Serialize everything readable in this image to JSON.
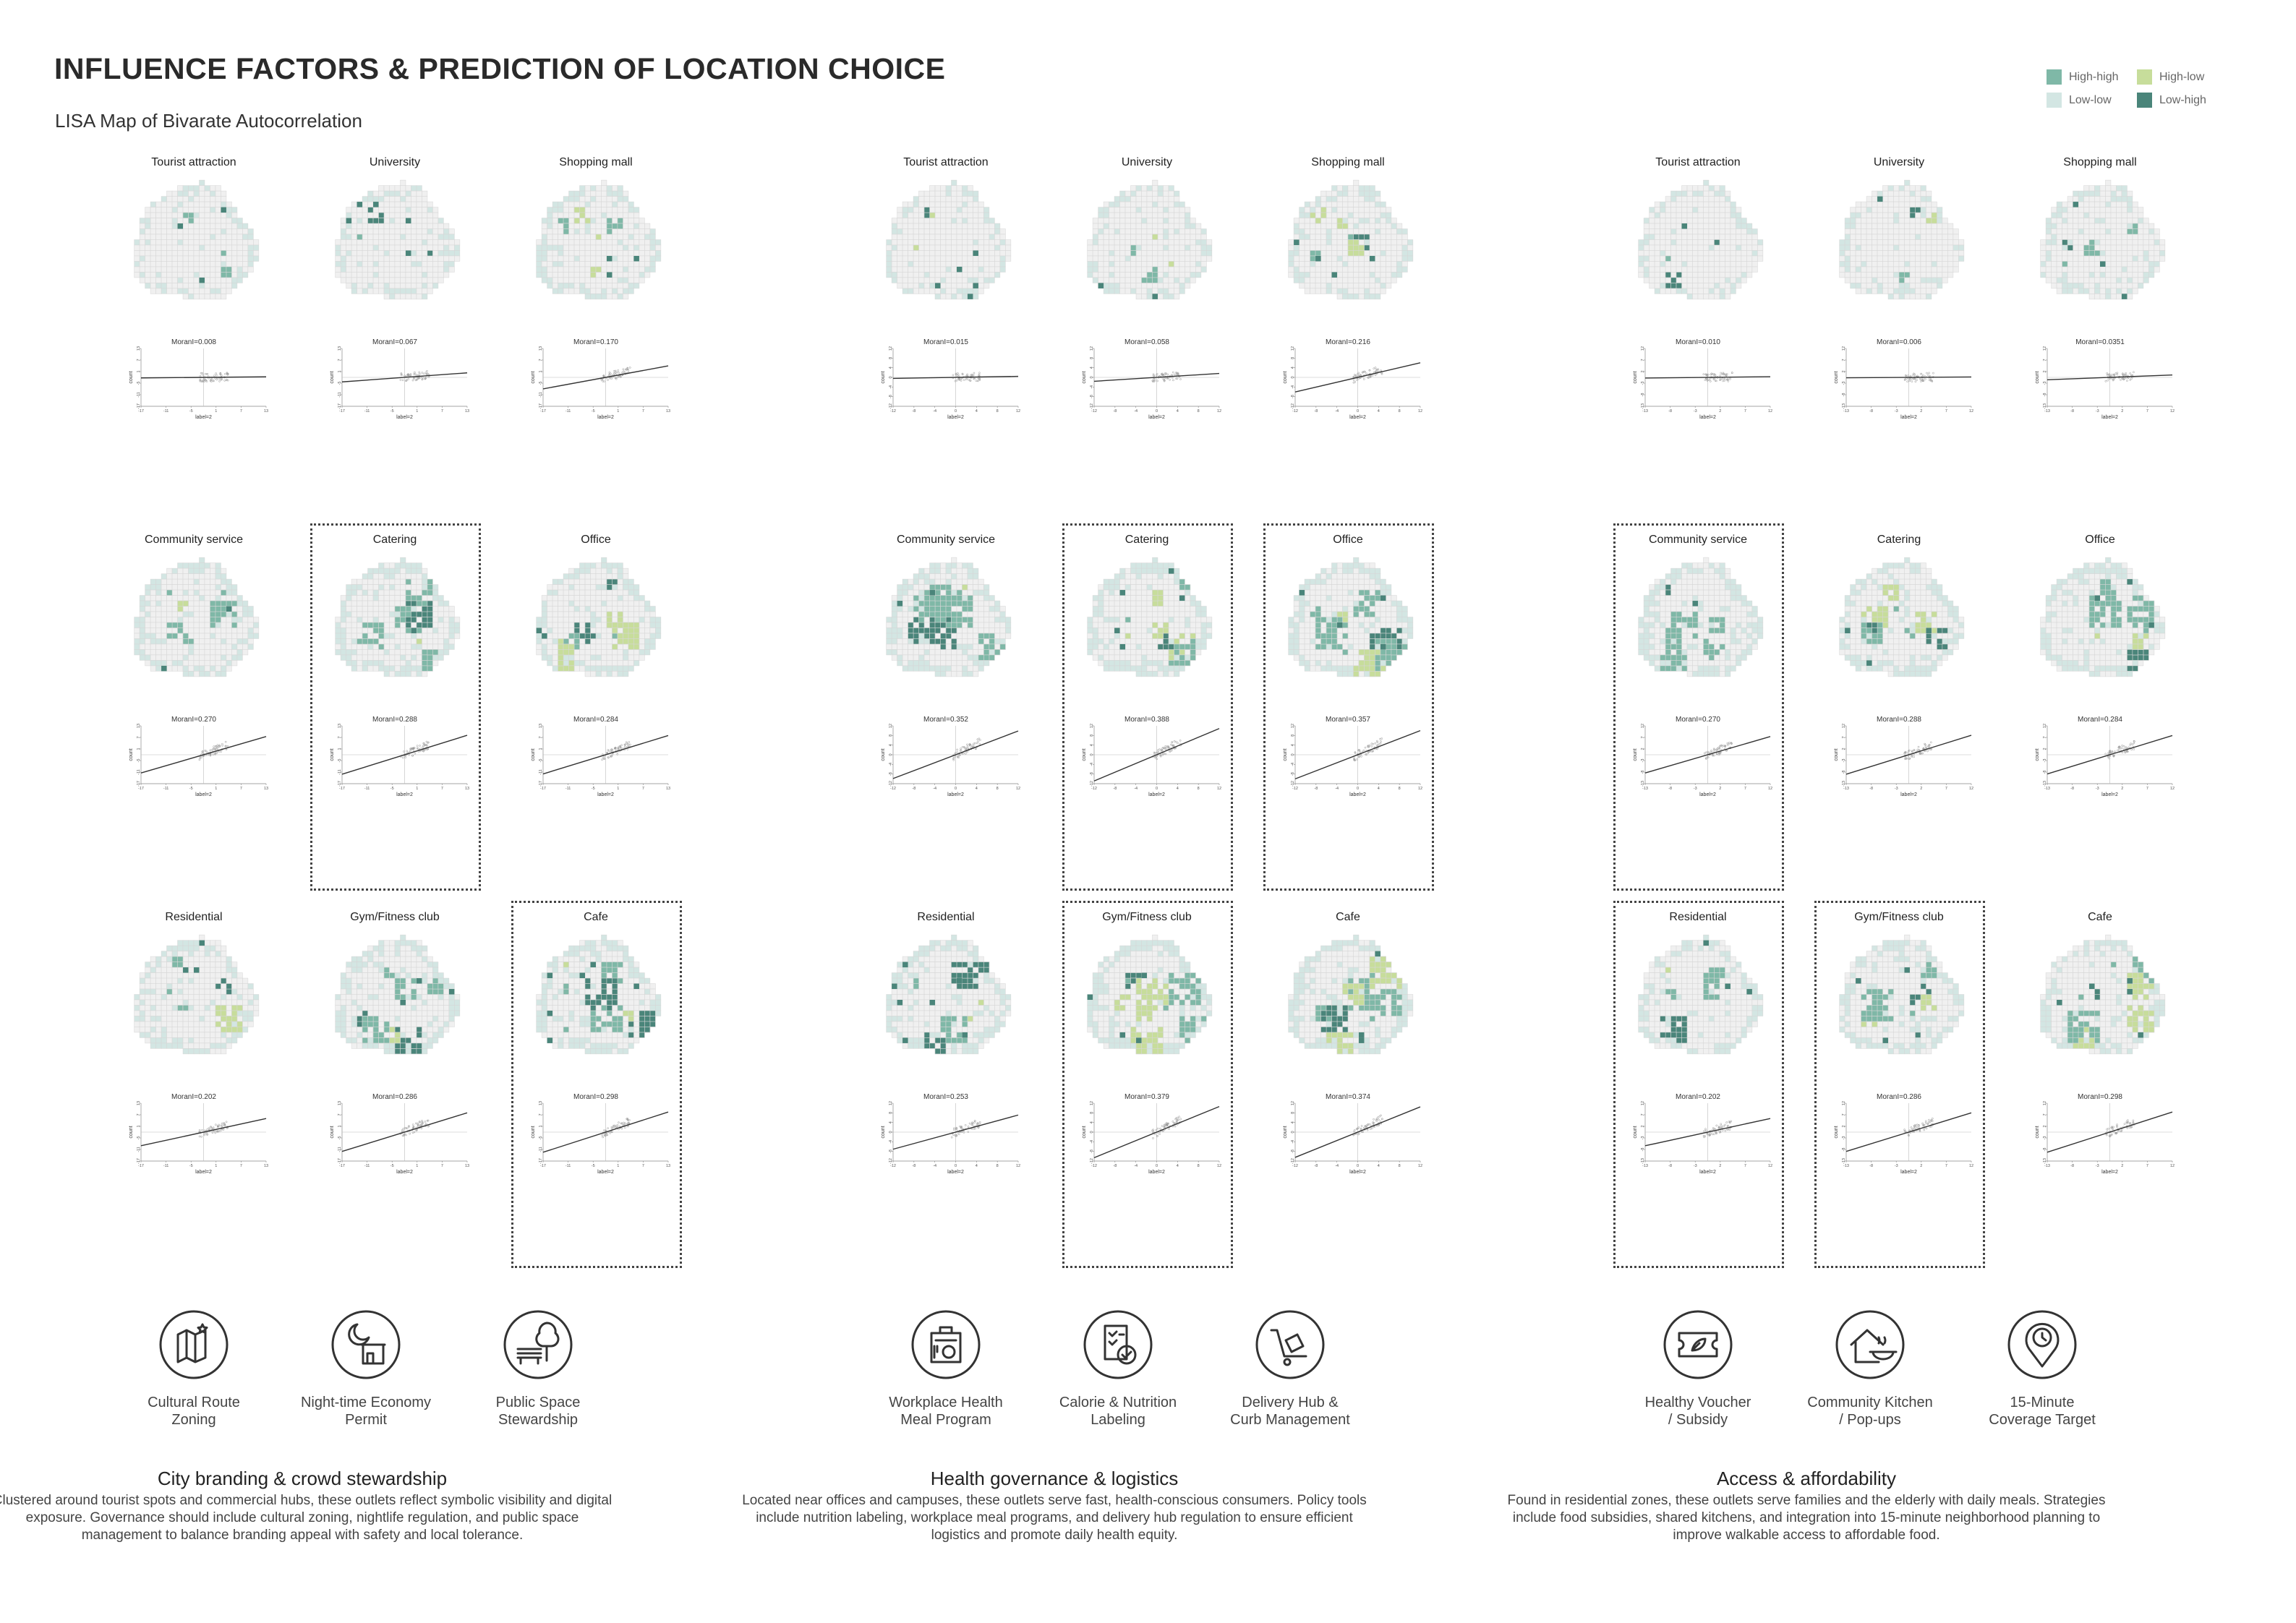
{
  "header": {
    "title": "INFLUENCE FACTORS & PREDICTION OF LOCATION CHOICE",
    "subtitle": "LISA Map of Bivarate Autocorrelation"
  },
  "legend": [
    {
      "label": "High-high",
      "color": "#7fb8a7"
    },
    {
      "label": "High-low",
      "color": "#c7dd9b"
    },
    {
      "label": "Low-low",
      "color": "#d3e6e3"
    },
    {
      "label": "Low-high",
      "color": "#4a857a"
    }
  ],
  "colors": {
    "high_high": "#7fb8a7",
    "high_low": "#c7dd9b",
    "low_low": "#d3e6e3",
    "low_high": "#4a857a",
    "grid": "#f0f0f0",
    "grid_line": "#d6d6d6"
  },
  "scatter_axis": {
    "xlabel": "label=2",
    "ylabel": "count"
  },
  "groups": [
    {
      "tick_x": [
        "-17",
        "-11",
        "-5",
        "1",
        "7",
        "13"
      ],
      "tick_y": [
        "13",
        "7",
        "1",
        "-5",
        "-11",
        "-17"
      ],
      "cells": [
        {
          "label": "Tourist attraction",
          "moran": "MoranI=0.008",
          "slope": 0.008,
          "boxed": false
        },
        {
          "label": "University",
          "moran": "MoranI=0.067",
          "slope": 0.067,
          "boxed": false
        },
        {
          "label": "Shopping mall",
          "moran": "MoranI=0.170",
          "slope": 0.17,
          "boxed": false
        },
        {
          "label": "Community service",
          "moran": "MoranI=0.270",
          "slope": 0.27,
          "boxed": false
        },
        {
          "label": "Catering",
          "moran": "MoranI=0.288",
          "slope": 0.288,
          "boxed": true
        },
        {
          "label": "Office",
          "moran": "MoranI=0.284",
          "slope": 0.284,
          "boxed": false
        },
        {
          "label": "Residential",
          "moran": "MoranI=0.202",
          "slope": 0.202,
          "boxed": false
        },
        {
          "label": "Gym/Fitness club",
          "moran": "MoranI=0.286",
          "slope": 0.286,
          "boxed": false
        },
        {
          "label": "Cafe",
          "moran": "MoranI=0.298",
          "slope": 0.298,
          "boxed": true
        }
      ],
      "policies": [
        {
          "icon": "map-star-icon",
          "label": "Cultural Route\nZoning"
        },
        {
          "icon": "moon-shop-icon",
          "label": "Night-time Economy\nPermit"
        },
        {
          "icon": "bench-tree-icon",
          "label": "Public Space\nStewardship"
        }
      ],
      "theme_title": "City branding & crowd stewardship",
      "theme_text": "Clustered around tourist spots and commercial hubs, these outlets reflect symbolic visibility and digital exposure. Governance should include cultural zoning, nightlife regulation, and public space management to balance branding appeal with safety and local tolerance."
    },
    {
      "tick_x": [
        "-12",
        "-8",
        "-4",
        "0",
        "4",
        "8",
        "12"
      ],
      "tick_y": [
        "12",
        "8",
        "4",
        "0",
        "-4",
        "-8",
        "-12"
      ],
      "cells": [
        {
          "label": "Tourist attraction",
          "moran": "MoranI=0.015",
          "slope": 0.015,
          "boxed": false
        },
        {
          "label": "University",
          "moran": "MoranI=0.058",
          "slope": 0.058,
          "boxed": false
        },
        {
          "label": "Shopping mall",
          "moran": "MoranI=0.216",
          "slope": 0.216,
          "boxed": false
        },
        {
          "label": "Community service",
          "moran": "MoranI=0.352",
          "slope": 0.352,
          "boxed": false
        },
        {
          "label": "Catering",
          "moran": "MoranI=0.388",
          "slope": 0.388,
          "boxed": true
        },
        {
          "label": "Office",
          "moran": "MoranI=0.357",
          "slope": 0.357,
          "boxed": true
        },
        {
          "label": "Residential",
          "moran": "MoranI=0.253",
          "slope": 0.253,
          "boxed": false
        },
        {
          "label": "Gym/Fitness club",
          "moran": "MoranI=0.379",
          "slope": 0.379,
          "boxed": true
        },
        {
          "label": "Cafe",
          "moran": "MoranI=0.374",
          "slope": 0.374,
          "boxed": false
        }
      ],
      "policies": [
        {
          "icon": "lunchbox-icon",
          "label": "Workplace Health\nMeal Program"
        },
        {
          "icon": "checklist-icon",
          "label": "Calorie & Nutrition\nLabeling"
        },
        {
          "icon": "delivery-cart-icon",
          "label": "Delivery Hub &\nCurb Management"
        }
      ],
      "theme_title": "Health governance & logistics",
      "theme_text": "Located near offices and campuses, these outlets serve fast, health-conscious consumers. Policy tools include nutrition labeling, workplace meal programs, and delivery hub regulation to ensure efficient logistics and promote daily health equity."
    },
    {
      "tick_x": [
        "-13",
        "-8",
        "-3",
        "2",
        "7",
        "12"
      ],
      "tick_y": [
        "12",
        "7",
        "2",
        "-3",
        "-8",
        "-13"
      ],
      "cells": [
        {
          "label": "Tourist attraction",
          "moran": "MoranI=0.010",
          "slope": 0.01,
          "boxed": false
        },
        {
          "label": "University",
          "moran": "MoranI=0.006",
          "slope": 0.006,
          "boxed": false
        },
        {
          "label": "Shopping mall",
          "moran": "MoranI=0.0351",
          "slope": 0.0351,
          "boxed": false
        },
        {
          "label": "Community service",
          "moran": "MoranI=0.270",
          "slope": 0.27,
          "boxed": true
        },
        {
          "label": "Catering",
          "moran": "MoranI=0.288",
          "slope": 0.288,
          "boxed": false
        },
        {
          "label": "Office",
          "moran": "MoranI=0.284",
          "slope": 0.284,
          "boxed": false
        },
        {
          "label": "Residential",
          "moran": "MoranI=0.202",
          "slope": 0.202,
          "boxed": true
        },
        {
          "label": "Gym/Fitness club",
          "moran": "MoranI=0.286",
          "slope": 0.286,
          "boxed": true
        },
        {
          "label": "Cafe",
          "moran": "MoranI=0.298",
          "slope": 0.298,
          "boxed": false
        }
      ],
      "policies": [
        {
          "icon": "voucher-icon",
          "label": "Healthy Voucher\n/ Subsidy"
        },
        {
          "icon": "community-kitchen-icon",
          "label": "Community Kitchen\n/ Pop-ups"
        },
        {
          "icon": "location-clock-icon",
          "label": "15-Minute\nCoverage Target"
        }
      ],
      "theme_title": "Access & affordability",
      "theme_text": "Found in residential zones, these outlets serve families and the elderly with daily meals. Strategies include food subsidies, shared kitchens, and integration into 15-minute neighborhood planning to improve walkable access to affordable food."
    }
  ]
}
